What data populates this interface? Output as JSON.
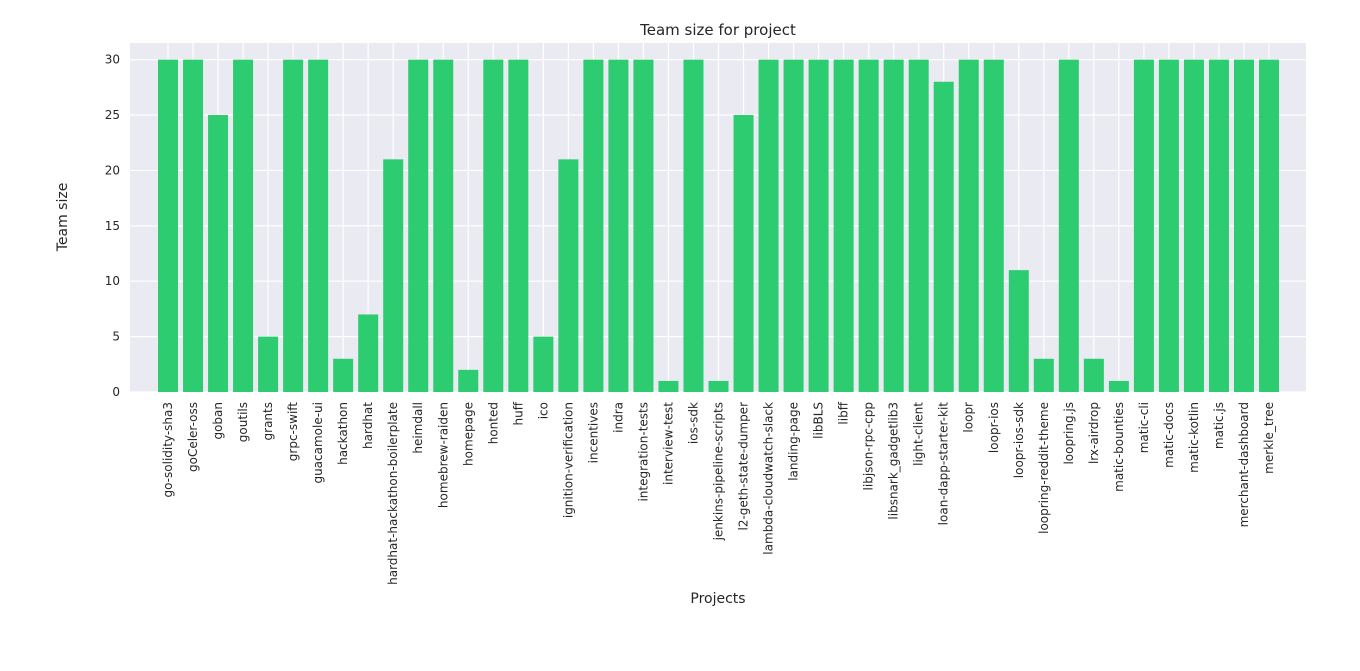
{
  "chart_data": {
    "type": "bar",
    "title": "Team size for project",
    "xlabel": "Projects",
    "ylabel": "Team size",
    "ylim": [
      0,
      31.5
    ],
    "yticks": [
      0,
      5,
      10,
      15,
      20,
      25,
      30
    ],
    "grid": true,
    "bar_color": "#2ecc71",
    "background_color": "#eaeaf2",
    "categories": [
      "go-solidity-sha3",
      "goCeler-oss",
      "goban",
      "goutils",
      "grants",
      "grpc-swift",
      "guacamole-ui",
      "hackathon",
      "hardhat",
      "hardhat-hackathon-boilerplate",
      "heimdall",
      "homebrew-raiden",
      "homepage",
      "honted",
      "huff",
      "ico",
      "ignition-verification",
      "incentives",
      "indra",
      "integration-tests",
      "interview-test",
      "ios-sdk",
      "jenkins-pipeline-scripts",
      "l2-geth-state-dumper",
      "lambda-cloudwatch-slack",
      "landing-page",
      "libBLS",
      "libff",
      "libjson-rpc-cpp",
      "libsnark_gadgetlib3",
      "light-client",
      "loan-dapp-starter-kit",
      "loopr",
      "loopr-ios",
      "loopr-ios-sdk",
      "loopring-reddit-theme",
      "loopring.js",
      "lrx-airdrop",
      "matic-bounties",
      "matic-cli",
      "matic-docs",
      "matic-kotlin",
      "matic.js",
      "merchant-dashboard",
      "merkle_tree"
    ],
    "values": [
      30,
      30,
      25,
      30,
      5,
      30,
      30,
      3,
      7,
      21,
      30,
      30,
      2,
      30,
      30,
      5,
      21,
      30,
      30,
      30,
      1,
      30,
      1,
      25,
      30,
      30,
      30,
      30,
      30,
      30,
      30,
      28,
      30,
      30,
      11,
      3,
      30,
      3,
      1,
      30,
      30,
      30,
      30,
      30,
      30
    ]
  }
}
